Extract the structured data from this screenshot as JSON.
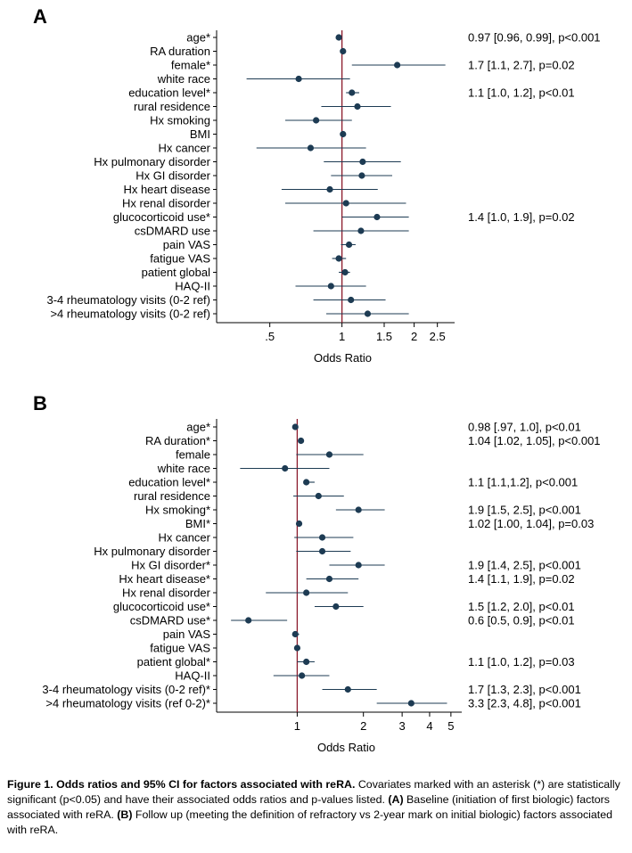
{
  "colors": {
    "point": "#1d3b53",
    "ci": "#1d3b53",
    "refline": "#8b1a2b",
    "axis": "#000000"
  },
  "caption": {
    "title": "Figure 1. Odds ratios and 95% CI for factors associated with reRA.",
    "text": " Covariates marked with an asterisk (*) are statistically significant (p<0.05) and have their associated odds ratios and p-values listed. ",
    "a_label": "(A)",
    "a_text": " Baseline (initiation of first biologic) factors associated with reRA. ",
    "b_label": "(B)",
    "b_text": " Follow up (meeting the definition of refractory vs 2-year mark on initial biologic) factors associated with reRA."
  },
  "chart_data": [
    {
      "panel": "A",
      "type": "forest",
      "xscale": "log",
      "xlabel": "Odds Ratio",
      "xlim": [
        0.3,
        2.95
      ],
      "xticks": [
        {
          "value": 0.5,
          "label": ".5"
        },
        {
          "value": 1,
          "label": "1"
        },
        {
          "value": 1.5,
          "label": "1.5"
        },
        {
          "value": 2,
          "label": "2"
        },
        {
          "value": 2.5,
          "label": "2.5"
        }
      ],
      "reference_line": 1,
      "rows": [
        {
          "label": "age*",
          "or": 0.97,
          "lo": 0.96,
          "hi": 0.99,
          "annotation": "0.97 [0.96, 0.99], p<0.001"
        },
        {
          "label": "RA duration",
          "or": 1.01,
          "lo": 1.0,
          "hi": 1.02,
          "annotation": ""
        },
        {
          "label": "female*",
          "or": 1.7,
          "lo": 1.1,
          "hi": 2.7,
          "annotation": "1.7 [1.1, 2.7], p=0.02"
        },
        {
          "label": "white race",
          "or": 0.66,
          "lo": 0.4,
          "hi": 1.08,
          "annotation": ""
        },
        {
          "label": "education level*",
          "or": 1.1,
          "lo": 1.04,
          "hi": 1.18,
          "annotation": "1.1 [1.0, 1.2], p<0.01"
        },
        {
          "label": "rural residence",
          "or": 1.16,
          "lo": 0.82,
          "hi": 1.6,
          "annotation": ""
        },
        {
          "label": "Hx smoking",
          "or": 0.78,
          "lo": 0.58,
          "hi": 1.1,
          "annotation": ""
        },
        {
          "label": "BMI",
          "or": 1.01,
          "lo": 0.99,
          "hi": 1.02,
          "annotation": ""
        },
        {
          "label": "Hx cancer",
          "or": 0.74,
          "lo": 0.44,
          "hi": 1.26,
          "annotation": ""
        },
        {
          "label": "Hx pulmonary disorder",
          "or": 1.22,
          "lo": 0.84,
          "hi": 1.76,
          "annotation": ""
        },
        {
          "label": "Hx GI disorder",
          "or": 1.21,
          "lo": 0.9,
          "hi": 1.62,
          "annotation": ""
        },
        {
          "label": "Hx heart disease",
          "or": 0.89,
          "lo": 0.56,
          "hi": 1.41,
          "annotation": ""
        },
        {
          "label": "Hx renal disorder",
          "or": 1.04,
          "lo": 0.58,
          "hi": 1.85,
          "annotation": ""
        },
        {
          "label": "glucocorticoid use*",
          "or": 1.4,
          "lo": 1.0,
          "hi": 1.9,
          "annotation": "1.4 [1.0, 1.9], p=0.02"
        },
        {
          "label": "csDMARD use",
          "or": 1.2,
          "lo": 0.76,
          "hi": 1.9,
          "annotation": ""
        },
        {
          "label": "pain VAS",
          "or": 1.07,
          "lo": 0.99,
          "hi": 1.14,
          "annotation": ""
        },
        {
          "label": "fatigue VAS",
          "or": 0.97,
          "lo": 0.91,
          "hi": 1.04,
          "annotation": ""
        },
        {
          "label": "patient global",
          "or": 1.03,
          "lo": 0.97,
          "hi": 1.08,
          "annotation": ""
        },
        {
          "label": "HAQ-II",
          "or": 0.9,
          "lo": 0.64,
          "hi": 1.26,
          "annotation": ""
        },
        {
          "label": "3-4 rheumatology visits (0-2 ref)",
          "or": 1.09,
          "lo": 0.76,
          "hi": 1.52,
          "annotation": ""
        },
        {
          "label": ">4 rheumatology visits (0-2 ref)",
          "or": 1.28,
          "lo": 0.86,
          "hi": 1.9,
          "annotation": ""
        }
      ]
    },
    {
      "panel": "B",
      "type": "forest",
      "xscale": "log",
      "xlabel": "Odds Ratio",
      "xlim": [
        0.43,
        5.6
      ],
      "xticks": [
        {
          "value": 1,
          "label": "1"
        },
        {
          "value": 2,
          "label": "2"
        },
        {
          "value": 3,
          "label": "3"
        },
        {
          "value": 4,
          "label": "4"
        },
        {
          "value": 5,
          "label": "5"
        }
      ],
      "reference_line": 1,
      "rows": [
        {
          "label": "age*",
          "or": 0.98,
          "lo": 0.97,
          "hi": 1.0,
          "annotation": "0.98 [.97, 1.0], p<0.01"
        },
        {
          "label": "RA duration*",
          "or": 1.04,
          "lo": 1.02,
          "hi": 1.05,
          "annotation": "1.04 [1.02, 1.05], p<0.001"
        },
        {
          "label": "female",
          "or": 1.4,
          "lo": 0.99,
          "hi": 2.0,
          "annotation": ""
        },
        {
          "label": "white race",
          "or": 0.88,
          "lo": 0.55,
          "hi": 1.4,
          "annotation": ""
        },
        {
          "label": "education level*",
          "or": 1.1,
          "lo": 1.1,
          "hi": 1.2,
          "annotation": "1.1 [1.1,1.2], p<0.001"
        },
        {
          "label": "rural residence",
          "or": 1.25,
          "lo": 0.96,
          "hi": 1.63,
          "annotation": ""
        },
        {
          "label": "Hx smoking*",
          "or": 1.9,
          "lo": 1.5,
          "hi": 2.5,
          "annotation": "1.9 [1.5, 2.5], p<0.001"
        },
        {
          "label": "BMI*",
          "or": 1.02,
          "lo": 1.0,
          "hi": 1.04,
          "annotation": "1.02 [1.00, 1.04], p=0.03"
        },
        {
          "label": "Hx cancer",
          "or": 1.3,
          "lo": 0.97,
          "hi": 1.8,
          "annotation": ""
        },
        {
          "label": "Hx pulmonary disorder",
          "or": 1.3,
          "lo": 0.99,
          "hi": 1.75,
          "annotation": ""
        },
        {
          "label": "Hx GI disorder*",
          "or": 1.9,
          "lo": 1.4,
          "hi": 2.5,
          "annotation": "1.9 [1.4, 2.5], p<0.001"
        },
        {
          "label": "Hx heart disease*",
          "or": 1.4,
          "lo": 1.1,
          "hi": 1.9,
          "annotation": "1.4 [1.1, 1.9], p=0.02"
        },
        {
          "label": "Hx renal disorder",
          "or": 1.1,
          "lo": 0.72,
          "hi": 1.7,
          "annotation": ""
        },
        {
          "label": "glucocorticoid use*",
          "or": 1.5,
          "lo": 1.2,
          "hi": 2.0,
          "annotation": "1.5 [1.2, 2.0], p<0.01"
        },
        {
          "label": "csDMARD use*",
          "or": 0.6,
          "lo": 0.5,
          "hi": 0.9,
          "annotation": "0.6 [0.5, 0.9], p<0.01"
        },
        {
          "label": "pain VAS",
          "or": 0.98,
          "lo": 0.95,
          "hi": 1.02,
          "annotation": ""
        },
        {
          "label": "fatigue VAS",
          "or": 1.0,
          "lo": 0.97,
          "hi": 1.03,
          "annotation": ""
        },
        {
          "label": "patient global*",
          "or": 1.1,
          "lo": 1.0,
          "hi": 1.2,
          "annotation": "1.1 [1.0, 1.2], p=0.03"
        },
        {
          "label": "HAQ-II",
          "or": 1.05,
          "lo": 0.78,
          "hi": 1.4,
          "annotation": ""
        },
        {
          "label": "3-4 rheumatology visits (0-2 ref)*",
          "or": 1.7,
          "lo": 1.3,
          "hi": 2.3,
          "annotation": "1.7 [1.3, 2.3], p<0.001"
        },
        {
          "label": ">4 rheumatology visits (ref 0-2)*",
          "or": 3.3,
          "lo": 2.3,
          "hi": 4.8,
          "annotation": "3.3 [2.3, 4.8], p<0.001"
        }
      ]
    }
  ]
}
